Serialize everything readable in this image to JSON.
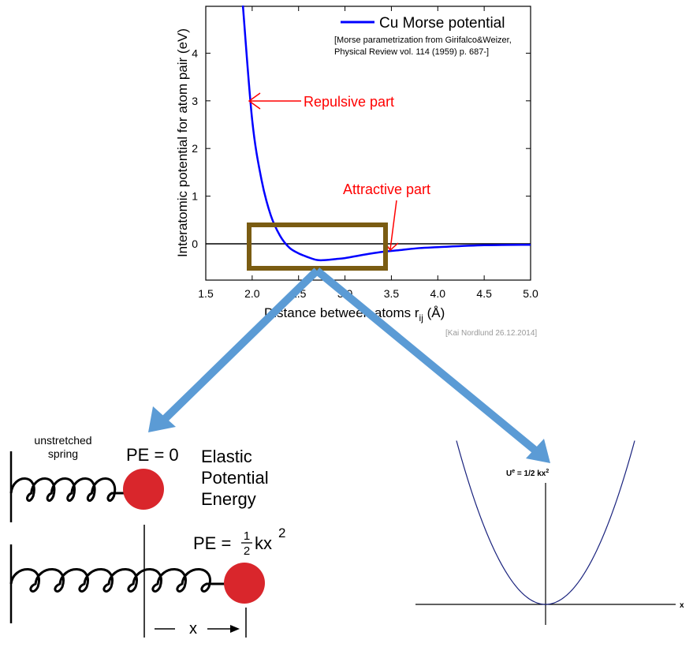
{
  "morse_plot": {
    "ylabel": "Interatomic potential for atom pair (eV)",
    "xlabel_main": "Distance between atoms r",
    "xlabel_sub": "ij",
    "xlabel_unit": " (Å)",
    "legend_label": "Cu Morse potential",
    "reference_line1": "[Morse parametrization from Girifalco&Weizer,",
    "reference_line2": "Physical Review vol. 114 (1959) p. 687-]",
    "annotation_repulsive": "Repulsive part",
    "annotation_attractive": "Attractive part",
    "credit": "[Kai Nordlund 26.12.2014]",
    "x_ticks": [
      "1.5",
      "2.0",
      "2.5",
      "3.0",
      "3.5",
      "4.0",
      "4.5",
      "5.0"
    ],
    "y_ticks": [
      "0",
      "1",
      "2",
      "3",
      "4"
    ],
    "colors": {
      "curve": "#0000ff",
      "annotation": "#ff0000",
      "highlight_box": "#7a5c12",
      "arrow": "#5b9bd5"
    }
  },
  "chart_data": {
    "type": "line",
    "xlabel": "Distance between atoms rij (Å)",
    "ylabel": "Interatomic potential for atom pair (eV)",
    "xlim": [
      1.5,
      5.0
    ],
    "ylim": [
      -0.5,
      5.0
    ],
    "series": [
      {
        "name": "Cu Morse potential",
        "x": [
          1.9,
          2.0,
          2.1,
          2.2,
          2.3,
          2.4,
          2.5,
          2.6,
          2.7,
          2.8,
          2.9,
          3.0,
          3.2,
          3.4,
          3.6,
          3.8,
          4.0,
          4.5,
          5.0
        ],
        "y": [
          5.0,
          2.6,
          1.35,
          0.6,
          0.17,
          -0.08,
          -0.2,
          -0.28,
          -0.34,
          -0.34,
          -0.32,
          -0.3,
          -0.23,
          -0.17,
          -0.13,
          -0.09,
          -0.07,
          -0.03,
          -0.02
        ]
      }
    ],
    "grid": false,
    "legend_position": "top-right"
  },
  "spring_panel": {
    "unstretched_line1": "unstretched",
    "unstretched_line2": "spring",
    "pe_zero": "PE = 0",
    "title_line1": "Elastic",
    "title_line2": "Potential",
    "title_line3": "Energy",
    "pe_formula_prefix": "PE = ",
    "pe_formula_num": "1",
    "pe_formula_den": "2",
    "pe_formula_var": "kx",
    "pe_formula_exp": "2",
    "x_label": "x",
    "colors": {
      "ball": "#d9262c"
    }
  },
  "parabola_panel": {
    "title": "U",
    "title_sup": "e",
    "title_rest": " = 1/2 kx",
    "title_exp": "2",
    "axis_label": "x",
    "colors": {
      "curve": "#1a237e"
    }
  }
}
